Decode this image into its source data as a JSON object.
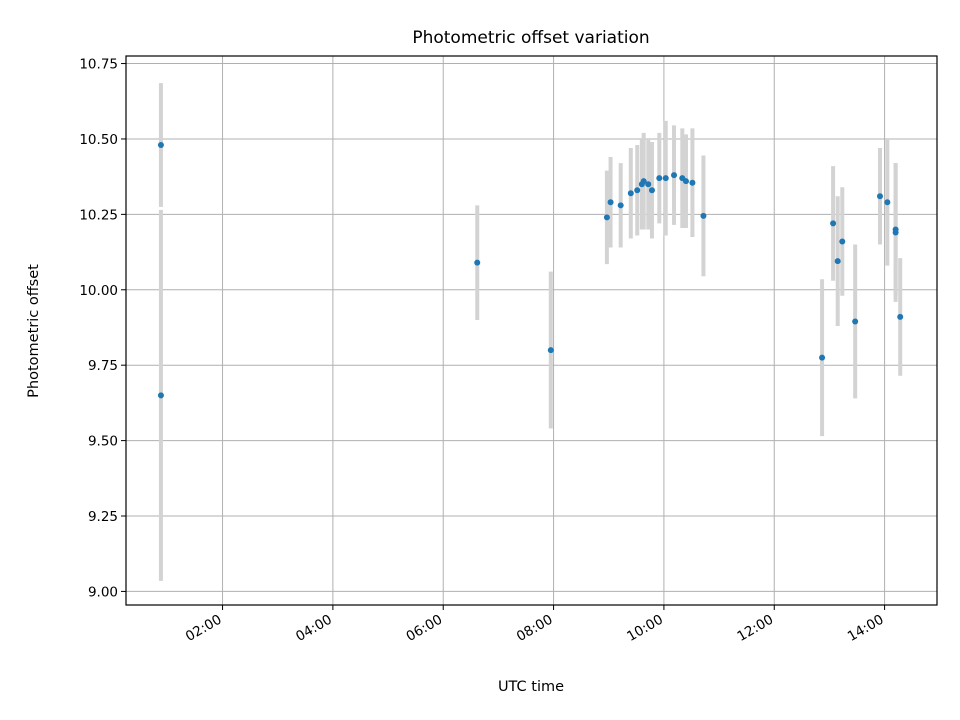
{
  "chart_data": {
    "type": "scatter",
    "title": "Photometric offset variation",
    "xlabel": "UTC time",
    "ylabel": "Photometric offset",
    "xlim": [
      "00:15",
      "14:57"
    ],
    "ylim": [
      8.955,
      10.775
    ],
    "grid": true,
    "legend": "none",
    "x_ticks": [
      "02:00",
      "04:00",
      "06:00",
      "08:00",
      "10:00",
      "12:00",
      "14:00"
    ],
    "y_ticks": [
      "9.00",
      "9.25",
      "9.50",
      "9.75",
      "10.00",
      "10.25",
      "10.50",
      "10.75"
    ],
    "colors": {
      "point": "#1f77b4",
      "errorbar": "#d3d3d3",
      "grid": "#b0b0b0"
    },
    "points": [
      {
        "x": "00:53",
        "y": 10.48,
        "err": 0.205
      },
      {
        "x": "00:53",
        "y": 9.65,
        "err": 0.615
      },
      {
        "x": "06:37",
        "y": 10.09,
        "err": 0.19
      },
      {
        "x": "07:57",
        "y": 9.8,
        "err": 0.26
      },
      {
        "x": "08:58",
        "y": 10.24,
        "err": 0.155
      },
      {
        "x": "09:02",
        "y": 10.29,
        "err": 0.15
      },
      {
        "x": "09:13",
        "y": 10.28,
        "err": 0.14
      },
      {
        "x": "09:24",
        "y": 10.32,
        "err": 0.15
      },
      {
        "x": "09:31",
        "y": 10.33,
        "err": 0.15
      },
      {
        "x": "09:36",
        "y": 10.35,
        "err": 0.15
      },
      {
        "x": "09:38",
        "y": 10.36,
        "err": 0.16
      },
      {
        "x": "09:43",
        "y": 10.35,
        "err": 0.15
      },
      {
        "x": "09:47",
        "y": 10.33,
        "err": 0.16
      },
      {
        "x": "09:55",
        "y": 10.37,
        "err": 0.15
      },
      {
        "x": "10:02",
        "y": 10.37,
        "err": 0.19
      },
      {
        "x": "10:11",
        "y": 10.38,
        "err": 0.165
      },
      {
        "x": "10:20",
        "y": 10.37,
        "err": 0.165
      },
      {
        "x": "10:24",
        "y": 10.36,
        "err": 0.155
      },
      {
        "x": "10:31",
        "y": 10.355,
        "err": 0.18
      },
      {
        "x": "10:43",
        "y": 10.245,
        "err": 0.2
      },
      {
        "x": "12:52",
        "y": 9.775,
        "err": 0.26
      },
      {
        "x": "13:04",
        "y": 10.22,
        "err": 0.19
      },
      {
        "x": "13:09",
        "y": 10.095,
        "err": 0.215
      },
      {
        "x": "13:14",
        "y": 10.16,
        "err": 0.18
      },
      {
        "x": "13:28",
        "y": 9.895,
        "err": 0.255
      },
      {
        "x": "13:55",
        "y": 10.31,
        "err": 0.16
      },
      {
        "x": "14:03",
        "y": 10.29,
        "err": 0.21
      },
      {
        "x": "14:12",
        "y": 10.19,
        "err": 0.23
      },
      {
        "x": "14:12",
        "y": 10.2,
        "err": 0.22
      },
      {
        "x": "14:17",
        "y": 9.91,
        "err": 0.195
      }
    ]
  }
}
